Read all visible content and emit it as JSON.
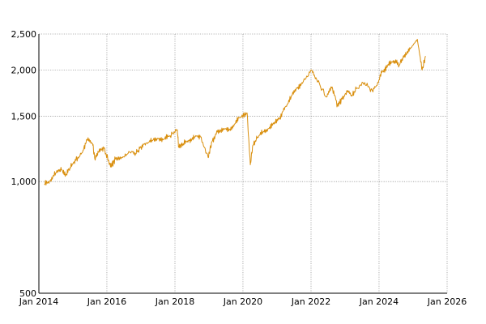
{
  "chart_data": {
    "type": "line",
    "title": "",
    "xlabel": "",
    "ylabel": "",
    "y_scale": "log",
    "x_axis_type": "date",
    "xlim": [
      "2014-01-01",
      "2026-01-01"
    ],
    "ylim": [
      500,
      2500
    ],
    "grid": true,
    "legend": "none",
    "x_ticks": [
      {
        "date": "2014-01-01",
        "label": "Jan 2014"
      },
      {
        "date": "2016-01-01",
        "label": "Jan 2016"
      },
      {
        "date": "2018-01-01",
        "label": "Jan 2018"
      },
      {
        "date": "2020-01-01",
        "label": "Jan 2020"
      },
      {
        "date": "2022-01-01",
        "label": "Jan 2022"
      },
      {
        "date": "2024-01-01",
        "label": "Jan 2024"
      },
      {
        "date": "2026-01-01",
        "label": "Jan 2026"
      }
    ],
    "y_ticks": [
      {
        "value": 500,
        "label": "500"
      },
      {
        "value": 1000,
        "label": "1,000"
      },
      {
        "value": 1500,
        "label": "1,500"
      },
      {
        "value": 2000,
        "label": "2,000"
      },
      {
        "value": 2500,
        "label": "2,500"
      }
    ],
    "series": [
      {
        "color": "#d98f0e",
        "x": [
          "2014-03-01",
          "2014-05-01",
          "2014-07-01",
          "2014-09-01",
          "2014-10-15",
          "2014-12-01",
          "2015-02-01",
          "2015-04-15",
          "2015-06-01",
          "2015-08-01",
          "2015-08-25",
          "2015-10-01",
          "2015-12-01",
          "2016-02-10",
          "2016-04-01",
          "2016-06-15",
          "2016-09-01",
          "2016-11-05",
          "2017-01-01",
          "2017-03-01",
          "2017-05-01",
          "2017-07-01",
          "2017-09-01",
          "2017-11-01",
          "2018-01-26",
          "2018-02-09",
          "2018-04-01",
          "2018-06-01",
          "2018-08-01",
          "2018-10-01",
          "2018-12-24",
          "2019-02-01",
          "2019-04-01",
          "2019-06-01",
          "2019-08-01",
          "2019-10-01",
          "2019-12-01",
          "2020-02-15",
          "2020-03-20",
          "2020-04-15",
          "2020-06-01",
          "2020-08-01",
          "2020-10-01",
          "2020-12-01",
          "2021-02-01",
          "2021-04-01",
          "2021-06-01",
          "2021-08-01",
          "2021-10-01",
          "2021-12-31",
          "2022-03-01",
          "2022-06-15",
          "2022-08-15",
          "2022-10-12",
          "2022-12-01",
          "2023-02-01",
          "2023-03-15",
          "2023-05-01",
          "2023-07-31",
          "2023-10-27",
          "2023-12-31",
          "2024-02-01",
          "2024-04-01",
          "2024-06-01",
          "2024-08-05",
          "2024-10-01",
          "2024-12-01",
          "2025-02-15",
          "2025-04-08",
          "2025-05-15"
        ],
        "values": [
          985,
          1005,
          1055,
          1075,
          1040,
          1090,
          1140,
          1200,
          1300,
          1265,
          1150,
          1200,
          1230,
          1095,
          1150,
          1160,
          1200,
          1190,
          1240,
          1270,
          1290,
          1310,
          1300,
          1325,
          1380,
          1240,
          1265,
          1290,
          1320,
          1320,
          1160,
          1280,
          1360,
          1390,
          1370,
          1430,
          1490,
          1530,
          1110,
          1250,
          1310,
          1360,
          1390,
          1430,
          1490,
          1590,
          1690,
          1790,
          1840,
          2000,
          1890,
          1690,
          1800,
          1605,
          1670,
          1760,
          1700,
          1780,
          1850,
          1745,
          1880,
          1970,
          2050,
          2120,
          2060,
          2200,
          2280,
          2420,
          2000,
          2180
        ]
      }
    ]
  }
}
